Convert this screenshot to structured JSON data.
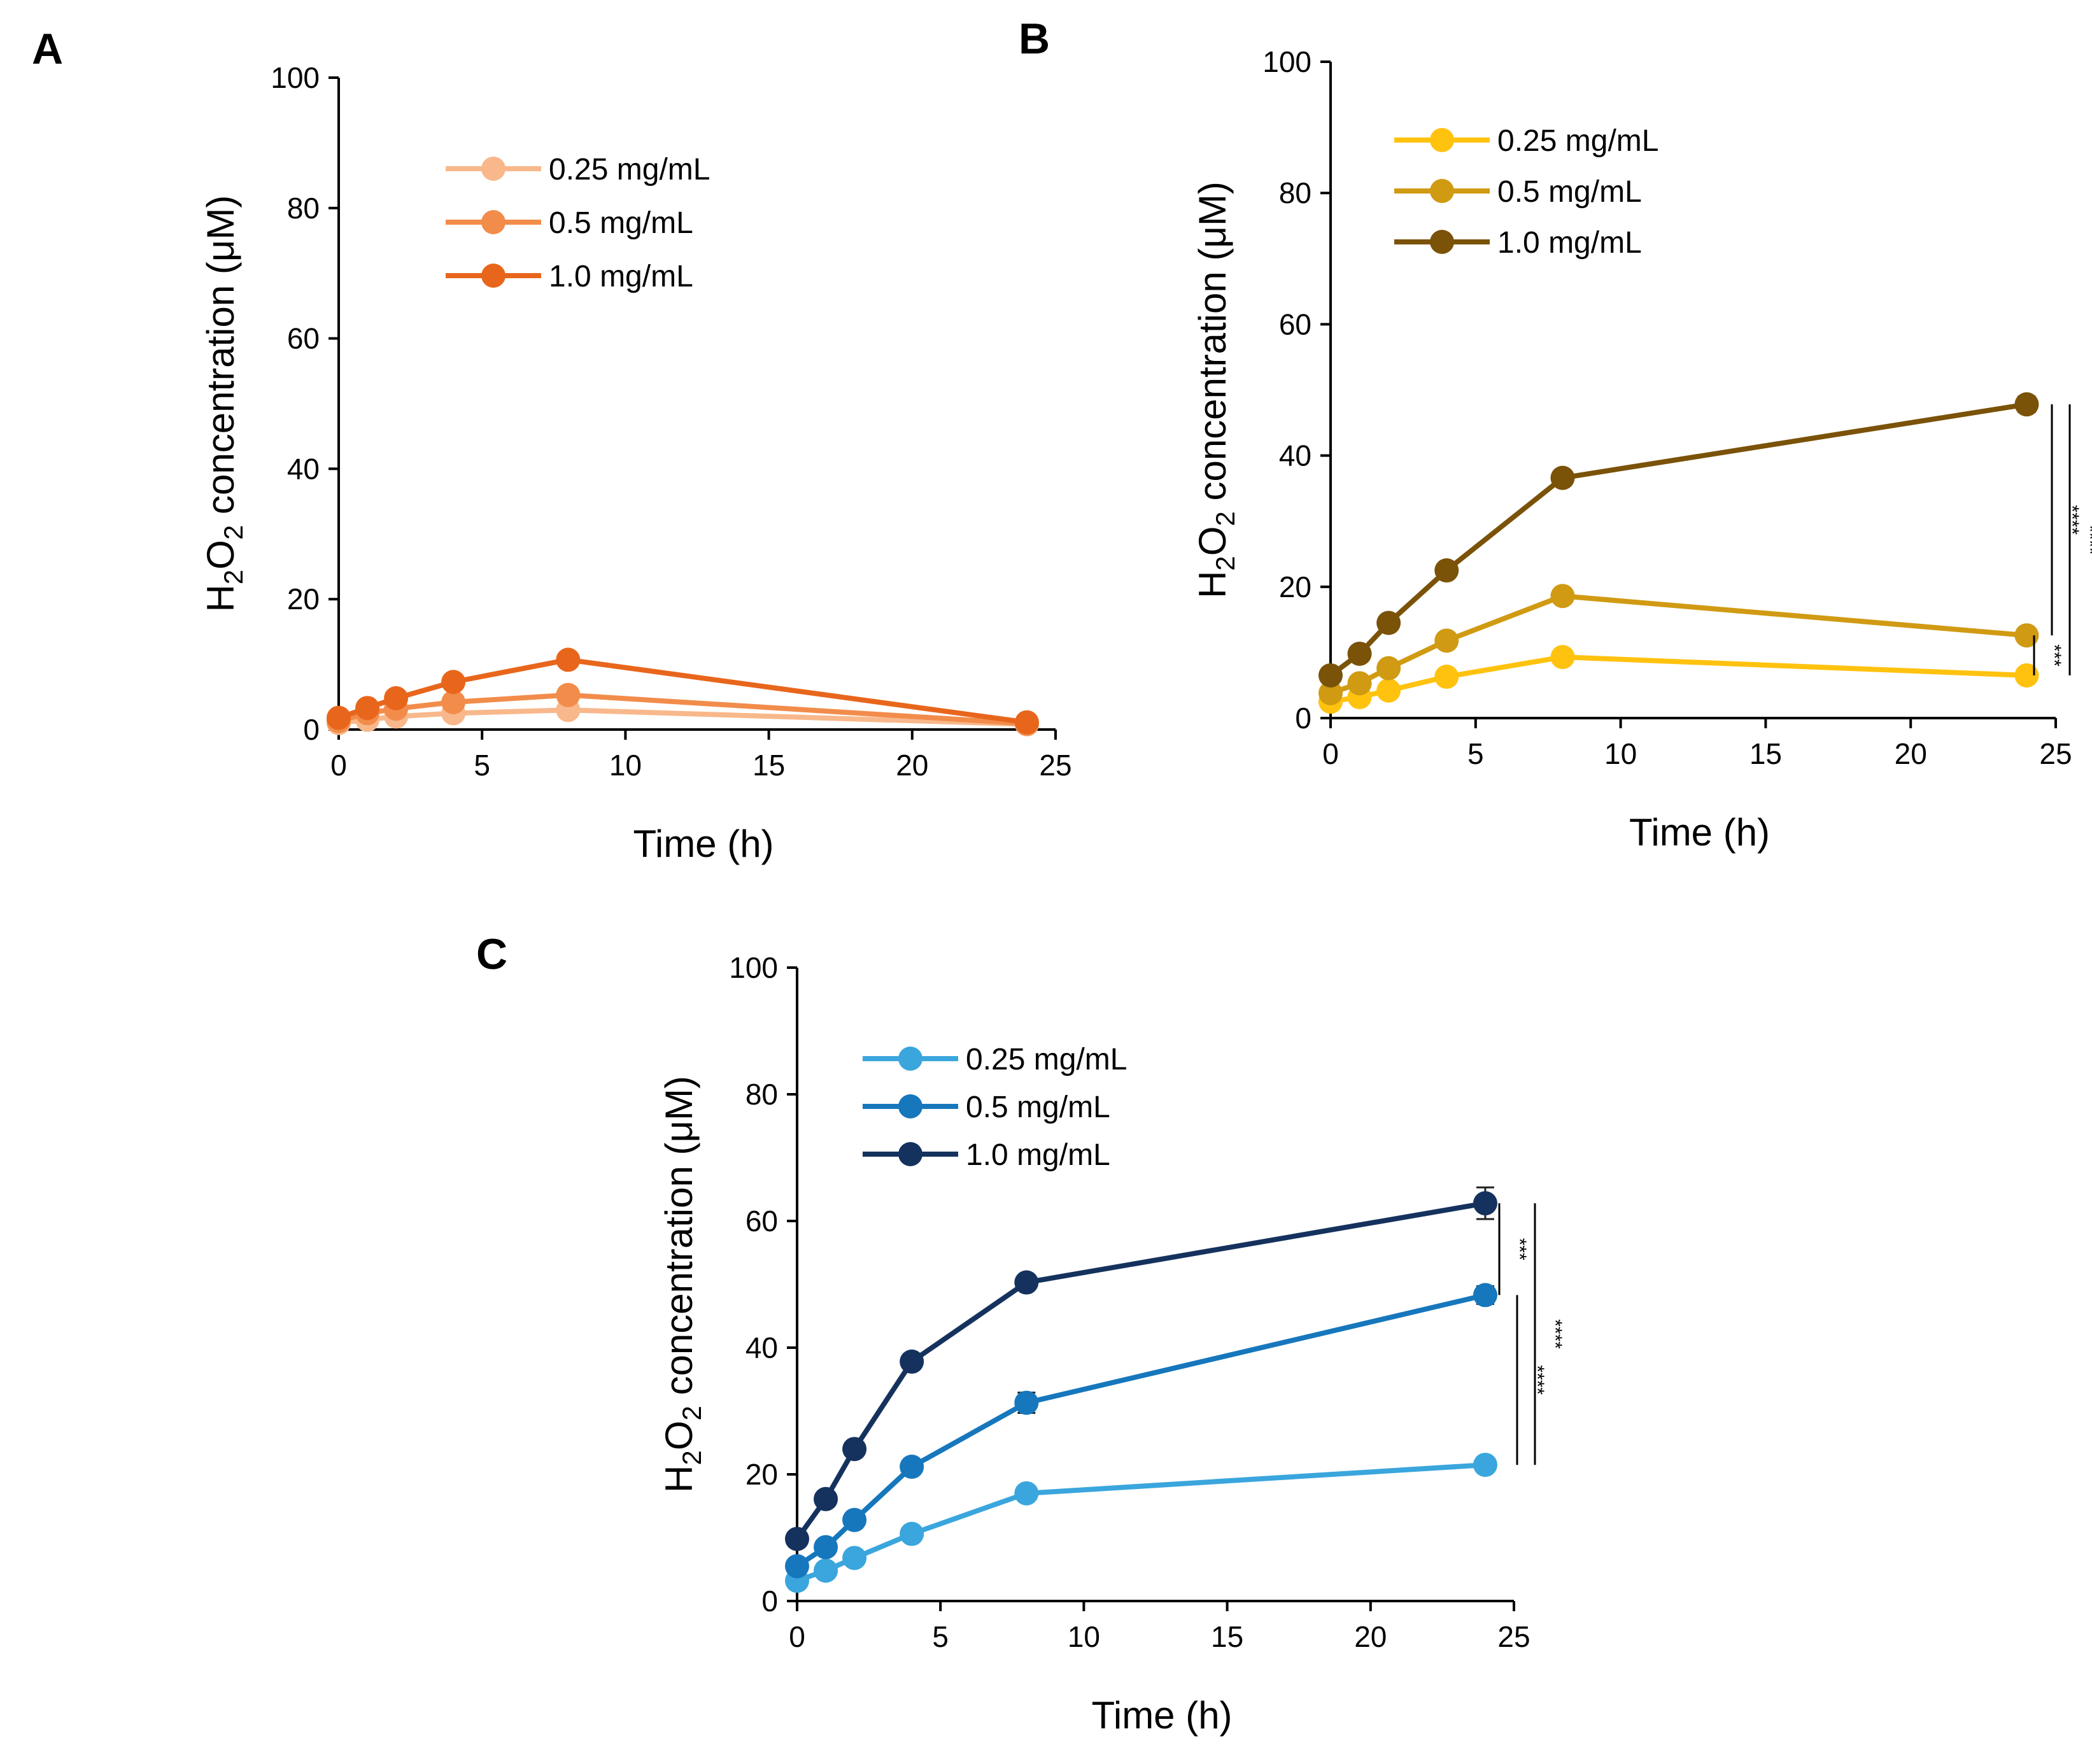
{
  "figure": {
    "y_label_parts": [
      "H",
      "2",
      "O",
      "2",
      " concentration (μM)"
    ]
  },
  "chart_data": [
    {
      "type": "line",
      "panel": "A",
      "xlabel": "Time  (h)",
      "xlim": [
        0,
        25
      ],
      "xticks": [
        0,
        5,
        10,
        15,
        20,
        25
      ],
      "ylim": [
        0,
        100
      ],
      "yticks": [
        0,
        20,
        40,
        60,
        80,
        100
      ],
      "legend_position": "top-center",
      "x": [
        0,
        1,
        2,
        4,
        8,
        24
      ],
      "series": [
        {
          "name": "0.25 mg/mL",
          "color": "#F8B88B",
          "values": [
            1.0,
            1.5,
            2.0,
            2.5,
            3.0,
            0.8
          ],
          "errors": [
            0,
            0,
            0,
            0,
            0,
            0
          ]
        },
        {
          "name": "0.5 mg/mL",
          "color": "#F28C4B",
          "values": [
            1.3,
            2.5,
            3.2,
            4.2,
            5.3,
            0.9
          ],
          "errors": [
            0,
            0,
            0,
            0,
            0,
            0
          ]
        },
        {
          "name": "1.0 mg/mL",
          "color": "#E8661C",
          "values": [
            1.8,
            3.3,
            4.8,
            7.3,
            10.7,
            1.1
          ],
          "errors": [
            0,
            0,
            0,
            0,
            0,
            0
          ]
        }
      ],
      "significance": []
    },
    {
      "type": "line",
      "panel": "B",
      "xlabel": "Time  (h)",
      "xlim": [
        0,
        25
      ],
      "xticks": [
        0,
        5,
        10,
        15,
        20,
        25
      ],
      "ylim": [
        0,
        100
      ],
      "yticks": [
        0,
        20,
        40,
        60,
        80,
        100
      ],
      "legend_position": "top-left",
      "x": [
        0,
        1,
        2,
        4,
        8,
        24
      ],
      "series": [
        {
          "name": "0.25 mg/mL",
          "color": "#FFC20E",
          "values": [
            2.5,
            3.2,
            4.2,
            6.3,
            9.3,
            6.5
          ],
          "errors": [
            0,
            0,
            0,
            0,
            0,
            0.5
          ]
        },
        {
          "name": "0.5 mg/mL",
          "color": "#D09A12",
          "values": [
            3.8,
            5.3,
            7.6,
            11.8,
            18.6,
            12.6
          ],
          "errors": [
            0,
            0,
            0,
            0,
            0,
            1.0
          ]
        },
        {
          "name": "1.0 mg/mL",
          "color": "#7A5208",
          "values": [
            6.5,
            9.8,
            14.5,
            22.5,
            36.6,
            47.8
          ],
          "errors": [
            0,
            0,
            0,
            0,
            0,
            1.2
          ]
        }
      ],
      "significance": [
        {
          "label": "***",
          "from": 6.5,
          "to": 12.6
        },
        {
          "label": "****",
          "from": 12.6,
          "to": 47.8
        },
        {
          "label": "****",
          "from": 6.5,
          "to": 47.8
        }
      ]
    },
    {
      "type": "line",
      "panel": "C",
      "xlabel": "Time  (h)",
      "xlim": [
        0,
        25
      ],
      "xticks": [
        0,
        5,
        10,
        15,
        20,
        25
      ],
      "ylim": [
        0,
        100
      ],
      "yticks": [
        0,
        20,
        40,
        60,
        80,
        100
      ],
      "legend_position": "top-left",
      "x": [
        0,
        1,
        2,
        4,
        8,
        24
      ],
      "series": [
        {
          "name": "0.25 mg/mL",
          "color": "#3AA6DD",
          "values": [
            3.2,
            4.8,
            6.8,
            10.6,
            17.0,
            21.5
          ],
          "errors": [
            0,
            0,
            0,
            0,
            0,
            0.5
          ]
        },
        {
          "name": "0.5 mg/mL",
          "color": "#1677BD",
          "values": [
            5.5,
            8.5,
            12.8,
            21.2,
            31.3,
            48.3
          ],
          "errors": [
            0,
            0,
            0,
            0,
            1.6,
            1.4
          ]
        },
        {
          "name": "1.0 mg/mL",
          "color": "#15325E",
          "values": [
            9.8,
            16.1,
            24.0,
            37.8,
            50.3,
            62.8
          ],
          "errors": [
            0,
            0,
            0,
            0,
            0,
            2.5
          ]
        }
      ],
      "significance": [
        {
          "label": "***",
          "from": 48.3,
          "to": 62.8
        },
        {
          "label": "****",
          "from": 21.5,
          "to": 48.3
        },
        {
          "label": "****",
          "from": 21.5,
          "to": 62.8
        }
      ]
    }
  ]
}
